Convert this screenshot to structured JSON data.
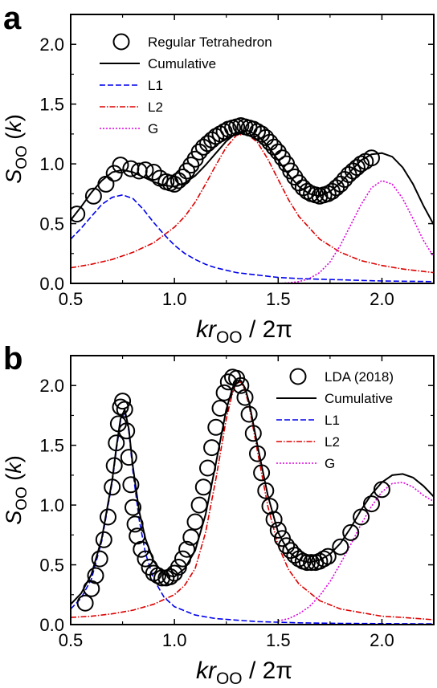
{
  "chart_data": [
    {
      "type": "line",
      "panel_label": "a",
      "xlabel": {
        "main": "kr",
        "sub": "OO",
        "tail": " / 2π"
      },
      "ylabel": {
        "main": "S",
        "sub": "OO",
        "tail": " (k)"
      },
      "xlim": [
        0.5,
        2.25
      ],
      "ylim": [
        0,
        2.25
      ],
      "xticks": [
        0.5,
        1.0,
        1.5,
        2.0
      ],
      "xtick_labels": [
        "0.5",
        "1.0",
        "1.5",
        "2.0"
      ],
      "yticks": [
        0,
        0.5,
        1.0,
        1.5,
        2.0
      ],
      "ytick_labels": [
        "0.0",
        "0.5",
        "1.0",
        "1.5",
        "2.0"
      ],
      "legend_position": "top-center",
      "grid": false,
      "series": [
        {
          "name": "Regular Tetrahedron",
          "style": "circle",
          "color": "#000000",
          "x": [
            0.53,
            0.61,
            0.67,
            0.71,
            0.74,
            0.79,
            0.83,
            0.86,
            0.9,
            0.93,
            0.96,
            0.98,
            1.0,
            1.02,
            1.04,
            1.06,
            1.08,
            1.1,
            1.12,
            1.14,
            1.16,
            1.18,
            1.2,
            1.22,
            1.24,
            1.26,
            1.28,
            1.3,
            1.32,
            1.34,
            1.36,
            1.38,
            1.4,
            1.42,
            1.44,
            1.46,
            1.48,
            1.5,
            1.52,
            1.54,
            1.56,
            1.58,
            1.6,
            1.62,
            1.64,
            1.66,
            1.68,
            1.7,
            1.72,
            1.74,
            1.76,
            1.78,
            1.8,
            1.82,
            1.84,
            1.86,
            1.88,
            1.9,
            1.92,
            1.95
          ],
          "y": [
            0.58,
            0.73,
            0.83,
            0.92,
            0.99,
            0.96,
            0.94,
            0.95,
            0.93,
            0.88,
            0.85,
            0.84,
            0.83,
            0.86,
            0.89,
            0.94,
            0.99,
            1.04,
            1.1,
            1.14,
            1.17,
            1.2,
            1.23,
            1.25,
            1.27,
            1.29,
            1.3,
            1.31,
            1.32,
            1.31,
            1.3,
            1.29,
            1.27,
            1.25,
            1.22,
            1.18,
            1.14,
            1.1,
            1.05,
            1.0,
            0.94,
            0.89,
            0.84,
            0.8,
            0.77,
            0.75,
            0.74,
            0.73,
            0.74,
            0.75,
            0.77,
            0.8,
            0.83,
            0.87,
            0.91,
            0.94,
            0.97,
            1.0,
            1.02,
            1.05
          ]
        },
        {
          "name": "Cumulative",
          "style": "solid",
          "color": "#000000",
          "x": [
            0.5,
            0.55,
            0.6,
            0.65,
            0.7,
            0.75,
            0.8,
            0.85,
            0.9,
            0.95,
            1.0,
            1.05,
            1.1,
            1.15,
            1.2,
            1.25,
            1.3,
            1.35,
            1.4,
            1.45,
            1.5,
            1.55,
            1.6,
            1.65,
            1.7,
            1.75,
            1.8,
            1.85,
            1.9,
            1.95,
            2.0,
            2.05,
            2.1,
            2.15,
            2.2,
            2.25
          ],
          "y": [
            0.53,
            0.64,
            0.76,
            0.86,
            0.93,
            0.95,
            0.93,
            0.89,
            0.85,
            0.82,
            0.81,
            0.84,
            0.9,
            0.99,
            1.09,
            1.19,
            1.26,
            1.28,
            1.24,
            1.15,
            1.03,
            0.91,
            0.81,
            0.75,
            0.73,
            0.77,
            0.84,
            0.94,
            1.03,
            1.08,
            1.09,
            1.06,
            0.97,
            0.83,
            0.65,
            0.49
          ]
        },
        {
          "name": "L1",
          "style": "dash",
          "color": "#0000ee",
          "x": [
            0.5,
            0.55,
            0.6,
            0.65,
            0.7,
            0.75,
            0.8,
            0.85,
            0.9,
            0.95,
            1.0,
            1.05,
            1.1,
            1.15,
            1.2,
            1.3,
            1.4,
            1.5,
            1.6,
            1.7,
            1.8,
            1.9,
            2.0,
            2.1,
            2.2,
            2.25
          ],
          "y": [
            0.37,
            0.46,
            0.56,
            0.66,
            0.72,
            0.74,
            0.71,
            0.62,
            0.51,
            0.41,
            0.32,
            0.25,
            0.2,
            0.16,
            0.13,
            0.09,
            0.07,
            0.05,
            0.04,
            0.035,
            0.03,
            0.025,
            0.02,
            0.018,
            0.016,
            0.015
          ]
        },
        {
          "name": "L2",
          "style": "dashdot",
          "color": "#dd0000",
          "x": [
            0.5,
            0.6,
            0.7,
            0.8,
            0.9,
            1.0,
            1.05,
            1.1,
            1.15,
            1.2,
            1.25,
            1.3,
            1.35,
            1.4,
            1.45,
            1.5,
            1.55,
            1.6,
            1.7,
            1.8,
            1.9,
            2.0,
            2.1,
            2.2,
            2.25
          ],
          "y": [
            0.13,
            0.16,
            0.2,
            0.26,
            0.34,
            0.47,
            0.56,
            0.68,
            0.83,
            0.99,
            1.14,
            1.24,
            1.25,
            1.18,
            1.04,
            0.87,
            0.7,
            0.56,
            0.37,
            0.26,
            0.19,
            0.15,
            0.12,
            0.1,
            0.09
          ]
        },
        {
          "name": "G",
          "style": "dot",
          "color": "#dd00dd",
          "x": [
            1.5,
            1.55,
            1.6,
            1.65,
            1.7,
            1.75,
            1.8,
            1.85,
            1.9,
            1.95,
            2.0,
            2.05,
            2.1,
            2.15,
            2.2,
            2.25
          ],
          "y": [
            0.0,
            0.005,
            0.015,
            0.04,
            0.09,
            0.18,
            0.32,
            0.49,
            0.66,
            0.8,
            0.86,
            0.83,
            0.71,
            0.54,
            0.36,
            0.22
          ]
        }
      ]
    },
    {
      "type": "line",
      "panel_label": "b",
      "xlabel": {
        "main": "kr",
        "sub": "OO",
        "tail": " / 2π"
      },
      "ylabel": {
        "main": "S",
        "sub": "OO",
        "tail": " (k)"
      },
      "xlim": [
        0.5,
        2.25
      ],
      "ylim": [
        0,
        2.25
      ],
      "xticks": [
        0.5,
        1.0,
        1.5,
        2.0
      ],
      "xtick_labels": [
        "0.5",
        "1.0",
        "1.5",
        "2.0"
      ],
      "yticks": [
        0,
        0.5,
        1.0,
        1.5,
        2.0
      ],
      "ytick_labels": [
        "0.0",
        "0.5",
        "1.0",
        "1.5",
        "2.0"
      ],
      "legend_position": "top-right",
      "grid": false,
      "series": [
        {
          "name": "LDA (2018)",
          "style": "circle",
          "color": "#000000",
          "x": [
            0.57,
            0.6,
            0.62,
            0.64,
            0.66,
            0.68,
            0.7,
            0.71,
            0.72,
            0.73,
            0.74,
            0.75,
            0.76,
            0.77,
            0.78,
            0.79,
            0.8,
            0.81,
            0.82,
            0.84,
            0.86,
            0.88,
            0.9,
            0.92,
            0.94,
            0.96,
            0.98,
            1.0,
            1.02,
            1.04,
            1.06,
            1.08,
            1.1,
            1.12,
            1.14,
            1.16,
            1.18,
            1.2,
            1.22,
            1.24,
            1.26,
            1.28,
            1.3,
            1.32,
            1.34,
            1.36,
            1.38,
            1.4,
            1.42,
            1.44,
            1.46,
            1.48,
            1.5,
            1.52,
            1.54,
            1.56,
            1.58,
            1.6,
            1.62,
            1.64,
            1.66,
            1.68,
            1.7,
            1.72,
            1.74,
            1.8,
            1.85,
            1.9,
            1.95,
            2.0
          ],
          "y": [
            0.18,
            0.3,
            0.41,
            0.55,
            0.71,
            0.9,
            1.15,
            1.33,
            1.52,
            1.68,
            1.82,
            1.87,
            1.8,
            1.62,
            1.4,
            1.17,
            0.98,
            0.84,
            0.74,
            0.63,
            0.55,
            0.48,
            0.43,
            0.41,
            0.39,
            0.39,
            0.4,
            0.43,
            0.48,
            0.55,
            0.63,
            0.73,
            0.86,
            1.0,
            1.15,
            1.31,
            1.48,
            1.65,
            1.81,
            1.94,
            2.03,
            2.07,
            2.06,
            2.0,
            1.9,
            1.76,
            1.6,
            1.43,
            1.27,
            1.12,
            0.99,
            0.88,
            0.79,
            0.72,
            0.66,
            0.62,
            0.58,
            0.55,
            0.53,
            0.52,
            0.52,
            0.52,
            0.53,
            0.55,
            0.57,
            0.65,
            0.77,
            0.9,
            1.01,
            1.13
          ]
        },
        {
          "name": "Cumulative",
          "style": "solid",
          "color": "#000000",
          "x": [
            0.5,
            0.55,
            0.6,
            0.65,
            0.7,
            0.72,
            0.74,
            0.76,
            0.78,
            0.8,
            0.83,
            0.86,
            0.9,
            0.95,
            1.0,
            1.05,
            1.1,
            1.15,
            1.2,
            1.25,
            1.28,
            1.3,
            1.32,
            1.34,
            1.36,
            1.4,
            1.45,
            1.5,
            1.55,
            1.6,
            1.65,
            1.7,
            1.75,
            1.8,
            1.85,
            1.9,
            1.95,
            2.0,
            2.05,
            2.1,
            2.15,
            2.2,
            2.25
          ],
          "y": [
            0.17,
            0.26,
            0.42,
            0.72,
            1.21,
            1.48,
            1.72,
            1.8,
            1.64,
            1.32,
            0.95,
            0.72,
            0.53,
            0.42,
            0.4,
            0.47,
            0.62,
            0.92,
            1.35,
            1.8,
            1.98,
            2.04,
            2.04,
            1.98,
            1.86,
            1.5,
            1.08,
            0.77,
            0.61,
            0.54,
            0.52,
            0.54,
            0.59,
            0.68,
            0.81,
            0.96,
            1.09,
            1.19,
            1.25,
            1.26,
            1.23,
            1.16,
            1.07
          ]
        },
        {
          "name": "L1",
          "style": "dash",
          "color": "#0000ee",
          "x": [
            0.5,
            0.55,
            0.6,
            0.65,
            0.7,
            0.72,
            0.74,
            0.76,
            0.78,
            0.8,
            0.83,
            0.86,
            0.9,
            0.95,
            1.0,
            1.1,
            1.2,
            1.4,
            1.6,
            1.8,
            2.0,
            2.25
          ],
          "y": [
            0.13,
            0.22,
            0.38,
            0.7,
            1.19,
            1.46,
            1.7,
            1.78,
            1.62,
            1.28,
            0.88,
            0.6,
            0.38,
            0.23,
            0.15,
            0.08,
            0.05,
            0.025,
            0.015,
            0.01,
            0.008,
            0.006
          ]
        },
        {
          "name": "L2",
          "style": "dashdot",
          "color": "#dd0000",
          "x": [
            0.5,
            0.6,
            0.7,
            0.8,
            0.9,
            1.0,
            1.05,
            1.1,
            1.15,
            1.2,
            1.25,
            1.28,
            1.3,
            1.32,
            1.34,
            1.36,
            1.4,
            1.45,
            1.5,
            1.55,
            1.6,
            1.7,
            1.8,
            1.9,
            2.0,
            2.1,
            2.25
          ],
          "y": [
            0.06,
            0.07,
            0.09,
            0.12,
            0.17,
            0.25,
            0.33,
            0.47,
            0.77,
            1.22,
            1.72,
            1.94,
            2.02,
            2.03,
            1.96,
            1.83,
            1.45,
            0.99,
            0.66,
            0.46,
            0.34,
            0.2,
            0.13,
            0.1,
            0.07,
            0.06,
            0.04
          ]
        },
        {
          "name": "G",
          "style": "dot",
          "color": "#dd00dd",
          "x": [
            1.5,
            1.55,
            1.6,
            1.65,
            1.7,
            1.75,
            1.8,
            1.85,
            1.9,
            1.95,
            2.0,
            2.05,
            2.1,
            2.15,
            2.2,
            2.25
          ],
          "y": [
            0.03,
            0.05,
            0.09,
            0.15,
            0.24,
            0.36,
            0.51,
            0.67,
            0.84,
            0.99,
            1.11,
            1.18,
            1.19,
            1.15,
            1.08,
            1.03
          ]
        }
      ]
    }
  ]
}
